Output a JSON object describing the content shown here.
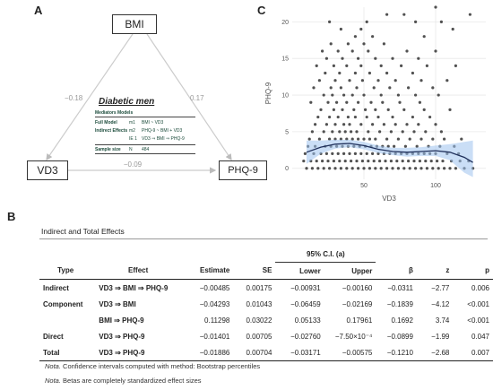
{
  "panels": {
    "a": "A",
    "b": "B",
    "c": "C"
  },
  "mediation": {
    "nodes": {
      "bmi": "BMI",
      "vd3": "VD3",
      "phq": "PHQ-9"
    },
    "paths": {
      "a": "−0.18",
      "b": "0.17",
      "c": "−0.09"
    },
    "group_title": "Diabetic men",
    "legend": {
      "header": "Mediators Models",
      "rows": [
        {
          "label": "Full Model",
          "code": "m1",
          "formula": "BMI ~ VD3"
        },
        {
          "label": "Indirect Effects",
          "code": "m2",
          "formula": "PHQ-9 ~ BMI + VD3"
        },
        {
          "label": "",
          "code": "IE 1",
          "formula": "VD3 ⇒ BMI ⇒ PHQ-9"
        },
        {
          "label": "Sample size",
          "code": "N",
          "formula": "484"
        }
      ]
    }
  },
  "chart_data": {
    "type": "scatter",
    "xlabel": "VD3",
    "ylabel": "PHQ-9",
    "xlim": [
      0,
      135
    ],
    "ylim": [
      -1.5,
      22
    ],
    "xticks": [
      50,
      100
    ],
    "yticks": [
      0,
      5,
      10,
      15,
      20
    ],
    "grid": true,
    "points": [
      [
        10,
        0
      ],
      [
        14,
        0
      ],
      [
        18,
        0
      ],
      [
        22,
        0
      ],
      [
        26,
        0
      ],
      [
        30,
        0
      ],
      [
        34,
        0
      ],
      [
        38,
        0
      ],
      [
        42,
        0
      ],
      [
        46,
        0
      ],
      [
        50,
        0
      ],
      [
        54,
        0
      ],
      [
        58,
        0
      ],
      [
        62,
        0
      ],
      [
        66,
        0
      ],
      [
        70,
        0
      ],
      [
        74,
        0
      ],
      [
        78,
        0
      ],
      [
        82,
        0
      ],
      [
        86,
        0
      ],
      [
        90,
        0
      ],
      [
        94,
        0
      ],
      [
        98,
        0
      ],
      [
        102,
        0
      ],
      [
        106,
        0
      ],
      [
        110,
        0
      ],
      [
        114,
        0
      ],
      [
        120,
        0
      ],
      [
        126,
        0
      ],
      [
        8,
        1
      ],
      [
        13,
        1
      ],
      [
        17,
        1
      ],
      [
        21,
        1
      ],
      [
        25,
        1
      ],
      [
        29,
        1
      ],
      [
        33,
        1
      ],
      [
        37,
        1
      ],
      [
        41,
        1
      ],
      [
        45,
        1
      ],
      [
        49,
        1
      ],
      [
        53,
        1
      ],
      [
        57,
        1
      ],
      [
        61,
        1
      ],
      [
        65,
        1
      ],
      [
        69,
        1
      ],
      [
        73,
        1
      ],
      [
        77,
        1
      ],
      [
        81,
        1
      ],
      [
        85,
        1
      ],
      [
        89,
        1
      ],
      [
        93,
        1
      ],
      [
        97,
        1
      ],
      [
        101,
        1
      ],
      [
        105,
        1
      ],
      [
        111,
        1
      ],
      [
        117,
        1
      ],
      [
        123,
        1
      ],
      [
        9,
        2
      ],
      [
        15,
        2
      ],
      [
        20,
        2
      ],
      [
        24,
        2
      ],
      [
        28,
        2
      ],
      [
        32,
        2
      ],
      [
        36,
        2
      ],
      [
        40,
        2
      ],
      [
        44,
        2
      ],
      [
        48,
        2
      ],
      [
        52,
        2
      ],
      [
        56,
        2
      ],
      [
        60,
        2
      ],
      [
        64,
        2
      ],
      [
        68,
        2
      ],
      [
        72,
        2
      ],
      [
        76,
        2
      ],
      [
        80,
        2
      ],
      [
        84,
        2
      ],
      [
        88,
        2
      ],
      [
        92,
        2
      ],
      [
        96,
        2
      ],
      [
        100,
        2
      ],
      [
        108,
        2
      ],
      [
        116,
        2
      ],
      [
        11,
        3
      ],
      [
        16,
        3
      ],
      [
        23,
        3
      ],
      [
        27,
        3
      ],
      [
        31,
        3
      ],
      [
        35,
        3
      ],
      [
        39,
        3
      ],
      [
        43,
        3
      ],
      [
        47,
        3
      ],
      [
        51,
        3
      ],
      [
        55,
        3
      ],
      [
        59,
        3
      ],
      [
        63,
        3
      ],
      [
        67,
        3
      ],
      [
        71,
        3
      ],
      [
        79,
        3
      ],
      [
        87,
        3
      ],
      [
        95,
        3
      ],
      [
        103,
        3
      ],
      [
        113,
        3
      ],
      [
        12,
        4
      ],
      [
        19,
        4
      ],
      [
        26,
        4
      ],
      [
        30,
        4
      ],
      [
        34,
        4
      ],
      [
        38,
        4
      ],
      [
        42,
        4
      ],
      [
        46,
        4
      ],
      [
        50,
        4
      ],
      [
        54,
        4
      ],
      [
        58,
        4
      ],
      [
        66,
        4
      ],
      [
        74,
        4
      ],
      [
        82,
        4
      ],
      [
        90,
        4
      ],
      [
        98,
        4
      ],
      [
        106,
        4
      ],
      [
        118,
        4
      ],
      [
        14,
        5
      ],
      [
        22,
        5
      ],
      [
        28,
        5
      ],
      [
        33,
        5
      ],
      [
        37,
        5
      ],
      [
        41,
        5
      ],
      [
        45,
        5
      ],
      [
        53,
        5
      ],
      [
        61,
        5
      ],
      [
        69,
        5
      ],
      [
        77,
        5
      ],
      [
        85,
        5
      ],
      [
        93,
        5
      ],
      [
        104,
        5
      ],
      [
        16,
        6
      ],
      [
        24,
        6
      ],
      [
        30,
        6
      ],
      [
        36,
        6
      ],
      [
        40,
        6
      ],
      [
        48,
        6
      ],
      [
        56,
        6
      ],
      [
        64,
        6
      ],
      [
        72,
        6
      ],
      [
        80,
        6
      ],
      [
        88,
        6
      ],
      [
        100,
        6
      ],
      [
        18,
        7
      ],
      [
        26,
        7
      ],
      [
        32,
        7
      ],
      [
        39,
        7
      ],
      [
        44,
        7
      ],
      [
        52,
        7
      ],
      [
        60,
        7
      ],
      [
        70,
        7
      ],
      [
        84,
        7
      ],
      [
        96,
        7
      ],
      [
        20,
        8
      ],
      [
        29,
        8
      ],
      [
        35,
        8
      ],
      [
        43,
        8
      ],
      [
        51,
        8
      ],
      [
        58,
        8
      ],
      [
        67,
        8
      ],
      [
        78,
        8
      ],
      [
        92,
        8
      ],
      [
        110,
        8
      ],
      [
        13,
        9
      ],
      [
        25,
        9
      ],
      [
        31,
        9
      ],
      [
        38,
        9
      ],
      [
        46,
        9
      ],
      [
        55,
        9
      ],
      [
        63,
        9
      ],
      [
        75,
        9
      ],
      [
        89,
        9
      ],
      [
        22,
        10
      ],
      [
        28,
        10
      ],
      [
        36,
        10
      ],
      [
        42,
        10
      ],
      [
        50,
        10
      ],
      [
        62,
        10
      ],
      [
        74,
        10
      ],
      [
        86,
        10
      ],
      [
        102,
        10
      ],
      [
        15,
        11
      ],
      [
        27,
        11
      ],
      [
        34,
        11
      ],
      [
        45,
        11
      ],
      [
        57,
        11
      ],
      [
        68,
        11
      ],
      [
        81,
        11
      ],
      [
        98,
        11
      ],
      [
        19,
        12
      ],
      [
        30,
        12
      ],
      [
        40,
        12
      ],
      [
        49,
        12
      ],
      [
        60,
        12
      ],
      [
        72,
        12
      ],
      [
        90,
        12
      ],
      [
        108,
        12
      ],
      [
        23,
        13
      ],
      [
        33,
        13
      ],
      [
        44,
        13
      ],
      [
        54,
        13
      ],
      [
        66,
        13
      ],
      [
        84,
        13
      ],
      [
        17,
        14
      ],
      [
        29,
        14
      ],
      [
        38,
        14
      ],
      [
        48,
        14
      ],
      [
        62,
        14
      ],
      [
        76,
        14
      ],
      [
        94,
        14
      ],
      [
        114,
        14
      ],
      [
        24,
        15
      ],
      [
        35,
        15
      ],
      [
        46,
        15
      ],
      [
        58,
        15
      ],
      [
        70,
        15
      ],
      [
        88,
        15
      ],
      [
        21,
        16
      ],
      [
        32,
        16
      ],
      [
        42,
        16
      ],
      [
        53,
        16
      ],
      [
        80,
        16
      ],
      [
        100,
        16
      ],
      [
        27,
        17
      ],
      [
        39,
        17
      ],
      [
        50,
        17
      ],
      [
        64,
        17
      ],
      [
        44,
        18
      ],
      [
        56,
        18
      ],
      [
        92,
        18
      ],
      [
        34,
        19
      ],
      [
        48,
        19
      ],
      [
        112,
        19
      ],
      [
        26,
        20
      ],
      [
        52,
        20
      ],
      [
        86,
        20
      ],
      [
        104,
        20
      ],
      [
        66,
        21
      ],
      [
        78,
        21
      ],
      [
        124,
        21
      ],
      [
        100,
        22
      ]
    ],
    "smooth": [
      [
        10,
        2.2
      ],
      [
        20,
        2.9
      ],
      [
        30,
        3.3
      ],
      [
        40,
        3.4
      ],
      [
        50,
        3.1
      ],
      [
        60,
        2.6
      ],
      [
        70,
        2.3
      ],
      [
        80,
        2.2
      ],
      [
        90,
        2.3
      ],
      [
        100,
        2.4
      ],
      [
        110,
        2.2
      ],
      [
        120,
        1.5
      ],
      [
        126,
        0.8
      ]
    ],
    "ci_upper": [
      [
        10,
        3.8
      ],
      [
        20,
        3.8
      ],
      [
        30,
        3.9
      ],
      [
        40,
        3.9
      ],
      [
        50,
        3.6
      ],
      [
        60,
        3.1
      ],
      [
        70,
        2.8
      ],
      [
        80,
        2.8
      ],
      [
        90,
        2.9
      ],
      [
        100,
        3.1
      ],
      [
        110,
        3.3
      ],
      [
        120,
        3.6
      ],
      [
        126,
        3.8
      ]
    ],
    "ci_lower": [
      [
        10,
        0.6
      ],
      [
        20,
        2.0
      ],
      [
        30,
        2.7
      ],
      [
        40,
        2.9
      ],
      [
        50,
        2.6
      ],
      [
        60,
        2.1
      ],
      [
        70,
        1.8
      ],
      [
        80,
        1.6
      ],
      [
        90,
        1.7
      ],
      [
        100,
        1.7
      ],
      [
        110,
        1.1
      ],
      [
        120,
        -0.6
      ],
      [
        126,
        -1.2
      ]
    ]
  },
  "table": {
    "title": "Indirect and Total Effects",
    "ci_header": "95% C.I. (a)",
    "columns": [
      "Type",
      "Effect",
      "Estimate",
      "SE",
      "Lower",
      "Upper",
      "β",
      "z",
      "p"
    ],
    "rows": [
      {
        "type": "Indirect",
        "effect": "VD3 ⇒ BMI ⇒ PHQ-9",
        "estimate": "−0.00485",
        "se": "0.00175",
        "lower": "−0.00931",
        "upper": "−0.00160",
        "beta": "−0.0311",
        "z": "−2.77",
        "p": "0.006"
      },
      {
        "type": "Component",
        "effect": "VD3 ⇒ BMI",
        "estimate": "−0.04293",
        "se": "0.01043",
        "lower": "−0.06459",
        "upper": "−0.02169",
        "beta": "−0.1839",
        "z": "−4.12",
        "p": "<0.001"
      },
      {
        "type": "",
        "effect": "BMI ⇒ PHQ-9",
        "estimate": "0.11298",
        "se": "0.03022",
        "lower": "0.05133",
        "upper": "0.17961",
        "beta": "0.1692",
        "z": "3.74",
        "p": "<0.001"
      },
      {
        "type": "Direct",
        "effect": "VD3 ⇒ PHQ-9",
        "estimate": "−0.01401",
        "se": "0.00705",
        "lower": "−0.02760",
        "upper": "−7.50×10⁻⁴",
        "beta": "−0.0899",
        "z": "−1.99",
        "p": "0.047"
      },
      {
        "type": "Total",
        "effect": "VD3 ⇒ PHQ-9",
        "estimate": "−0.01886",
        "se": "0.00704",
        "lower": "−0.03171",
        "upper": "−0.00575",
        "beta": "−0.1210",
        "z": "−2.68",
        "p": "0.007"
      }
    ],
    "notes": [
      {
        "label": "Nota.",
        "text": " Confidence intervals computed with method: Bootstrap percentiles"
      },
      {
        "label": "Nota.",
        "text": " Betas are completely standardized effect sizes"
      }
    ]
  }
}
